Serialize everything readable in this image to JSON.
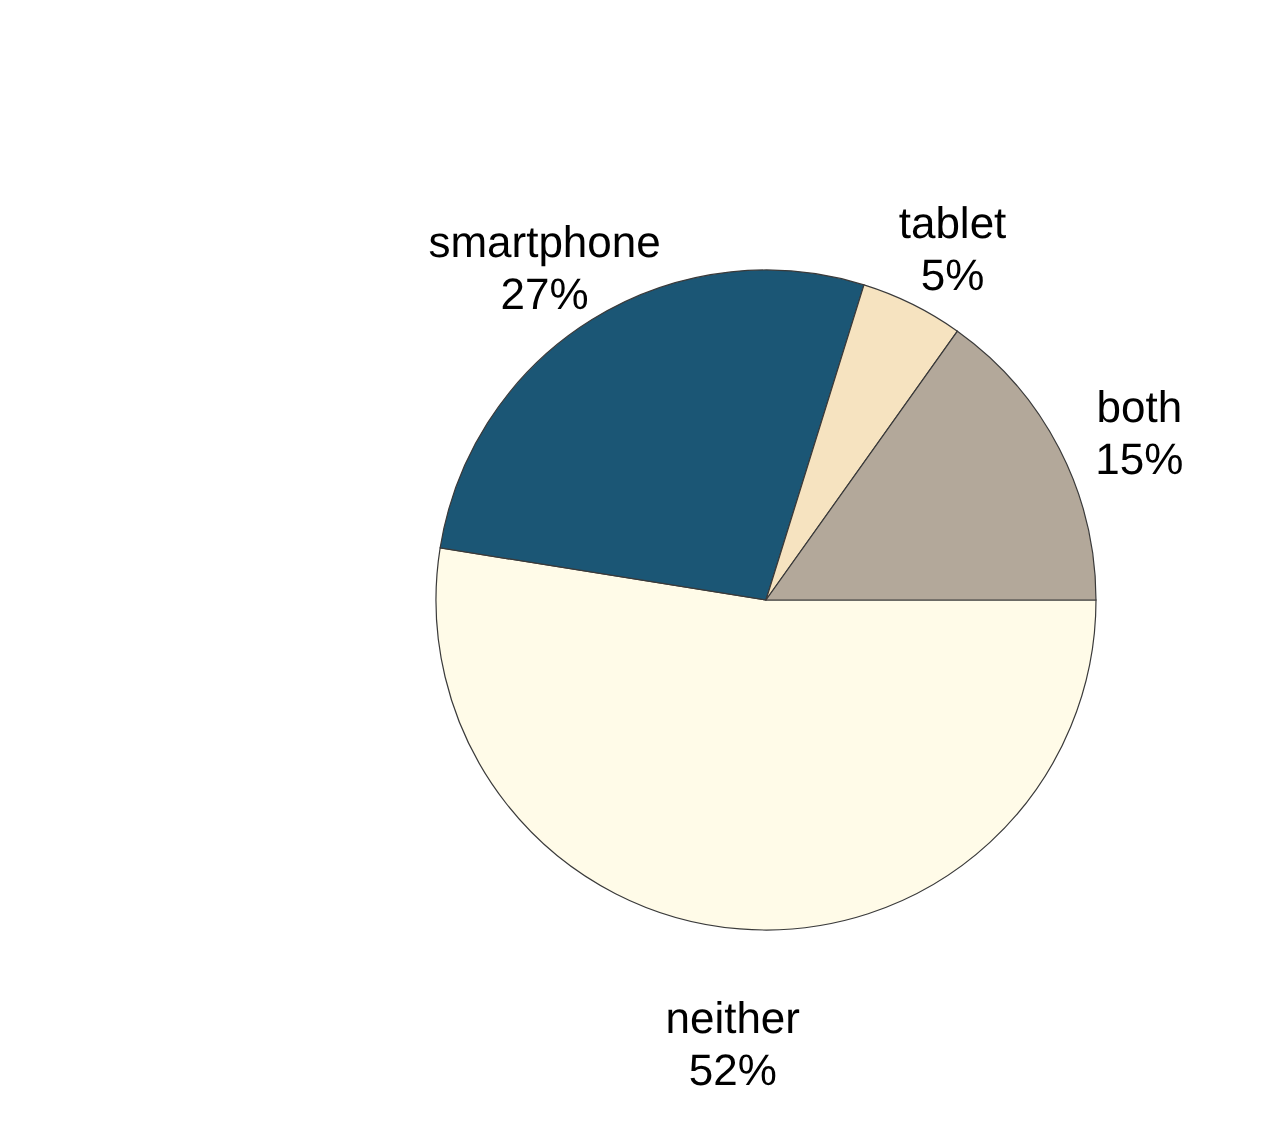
{
  "chart_data": {
    "type": "pie",
    "categories": [
      "neither",
      "smartphone",
      "tablet",
      "both"
    ],
    "values": [
      52,
      27,
      5,
      15
    ],
    "colors": [
      "#fffbe8",
      "#1b5675",
      "#f6e3c0",
      "#b3a89a"
    ],
    "value_labels": [
      "52%",
      "27%",
      "5%",
      "15%"
    ]
  }
}
